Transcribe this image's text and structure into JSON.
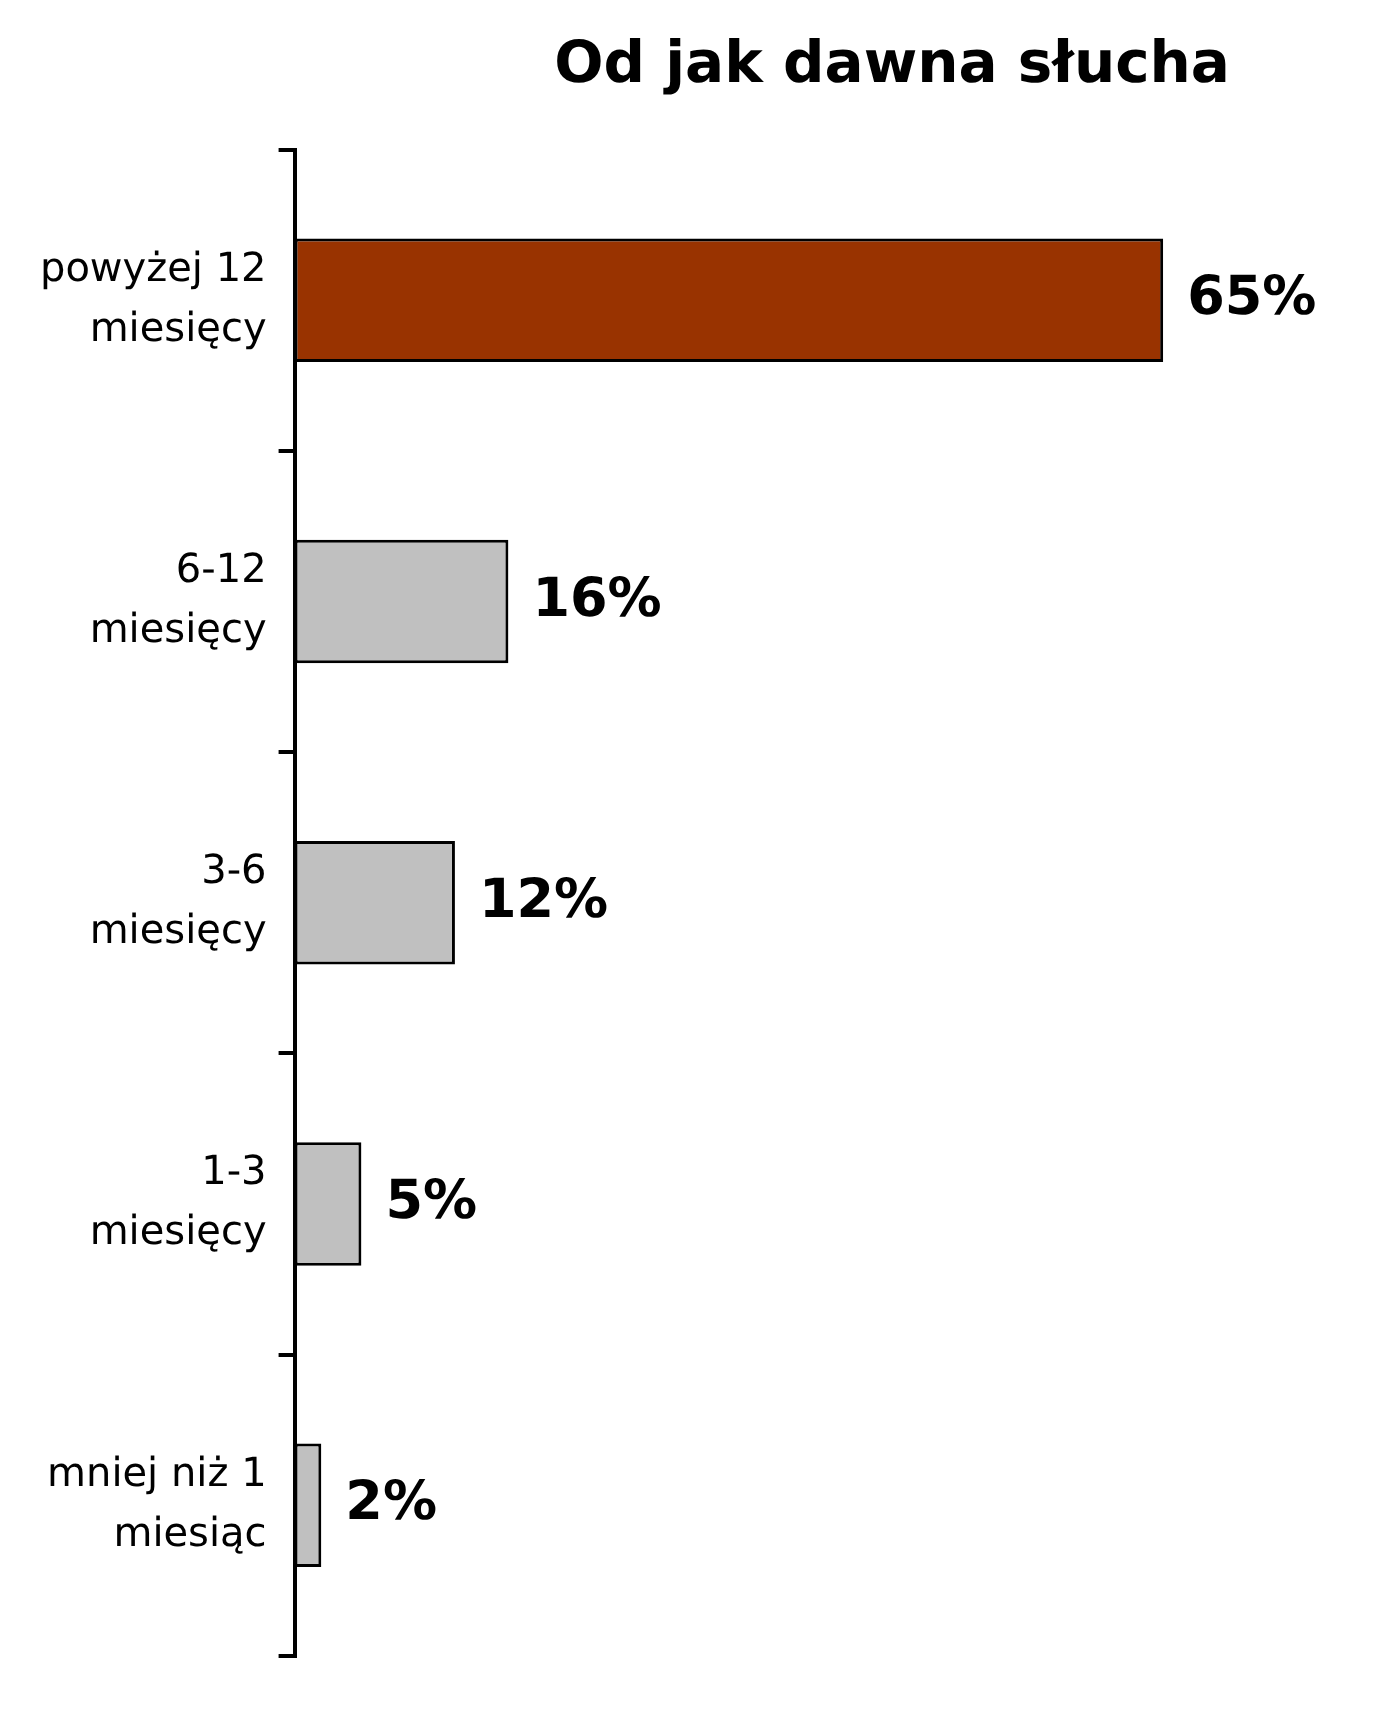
{
  "chart_data": {
    "type": "bar",
    "orientation": "horizontal",
    "title": "Od jak dawna słucha",
    "categories": [
      "powyżej 12\nmiesięcy",
      "6-12\nmiesięcy",
      "3-6\nmiesięcy",
      "1-3\nmiesięcy",
      "mniej niż 1\nmiesiąc"
    ],
    "values": [
      65,
      16,
      12,
      5,
      2
    ],
    "colors": [
      "#993300",
      "#c0c0c0",
      "#c0c0c0",
      "#c0c0c0",
      "#c0c0c0"
    ],
    "value_labels": [
      "65%",
      "16%",
      "12%",
      "5%",
      "2%"
    ],
    "tick_labels": "y",
    "grid": false,
    "legend": false
  }
}
